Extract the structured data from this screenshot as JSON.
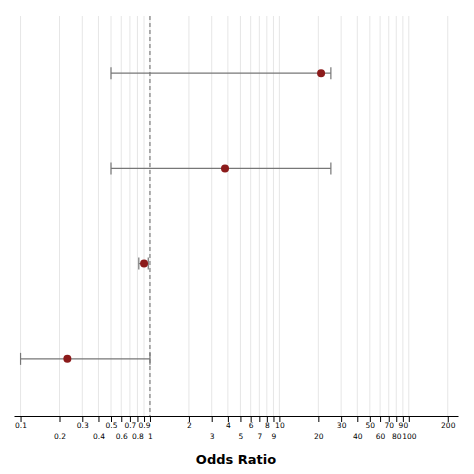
{
  "chart_data": {
    "type": "forest",
    "orientation": "horizontal",
    "categories": [
      null,
      null,
      null,
      null
    ],
    "values": [
      21.0,
      3.8,
      0.9,
      0.23
    ],
    "ci_low": [
      0.5,
      0.5,
      0.82,
      0.1
    ],
    "ci_high": [
      25.0,
      25.0,
      0.97,
      1.0
    ],
    "reference_line": 1.0,
    "xlabel": "Odds Ratio",
    "xlim": [
      0.089,
      240
    ],
    "xticks": [
      0.1,
      0.2,
      0.3,
      0.4,
      0.5,
      0.6,
      0.7,
      0.8,
      0.9,
      1,
      2,
      3,
      4,
      5,
      6,
      7,
      8,
      9,
      10,
      20,
      30,
      40,
      50,
      60,
      70,
      80,
      90,
      100,
      200
    ],
    "log": "x",
    "grid": true,
    "tick_labels": "x",
    "color": "#8B1A1A"
  }
}
